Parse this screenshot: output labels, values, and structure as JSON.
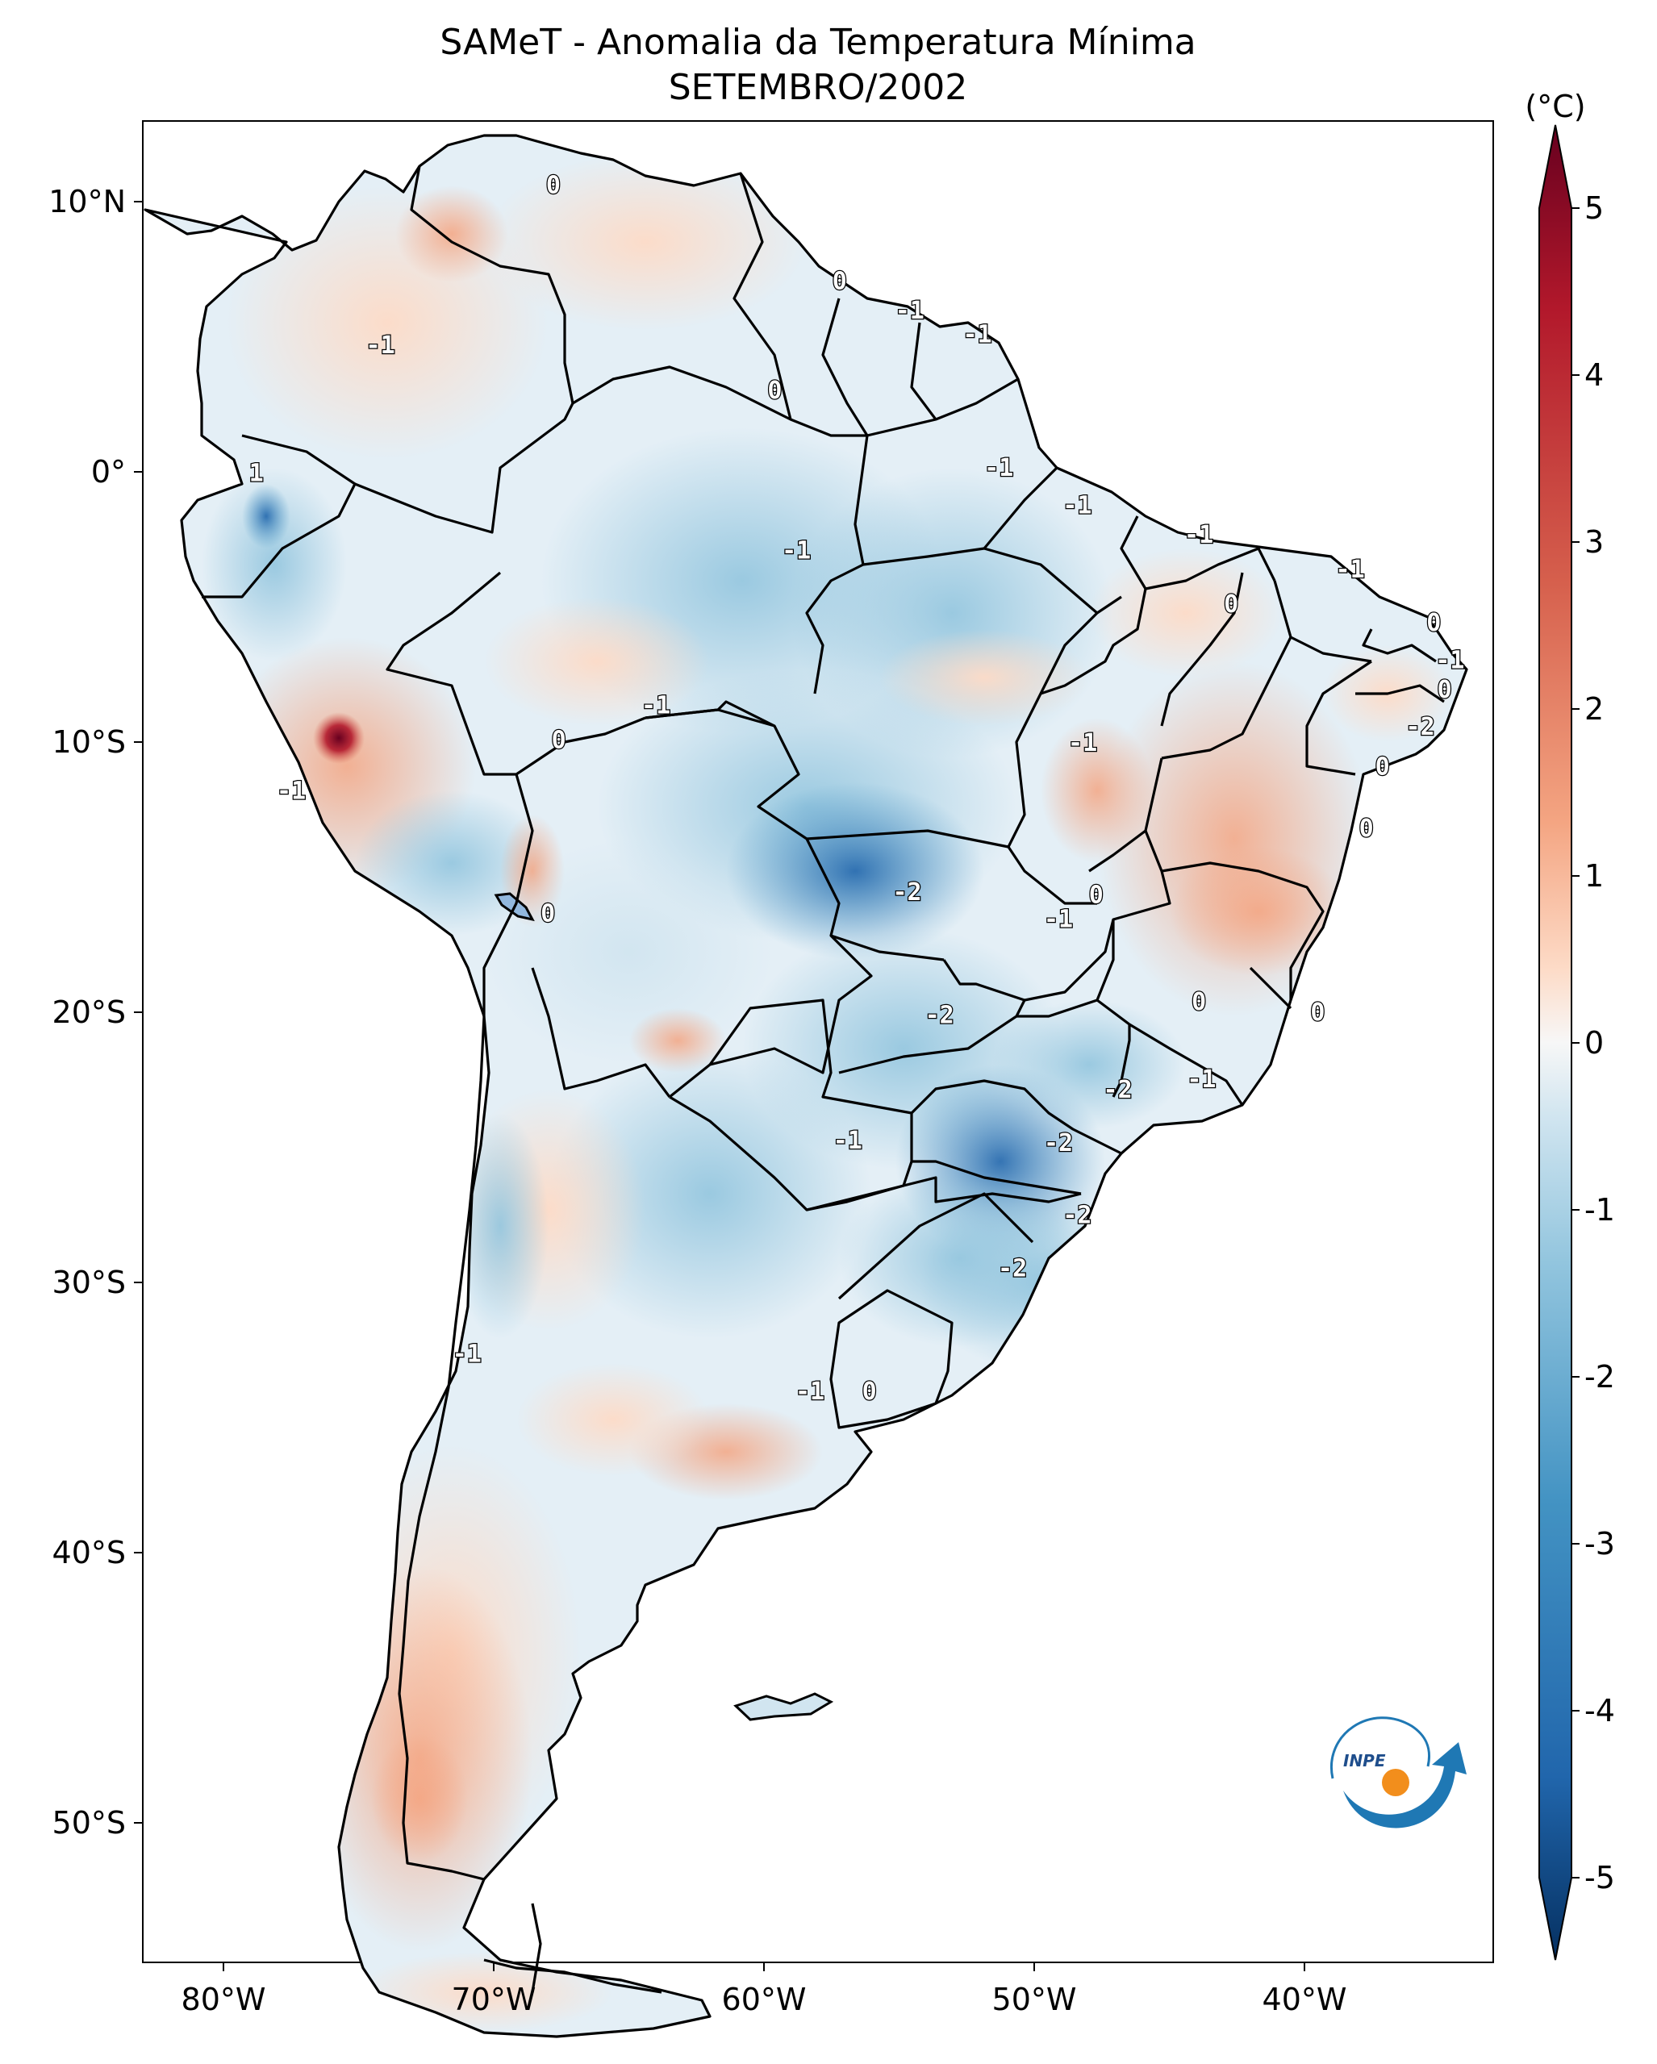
{
  "title": "SAMeT - Anomalia da Temperatura Mínima",
  "subtitle": "SETEMBRO/2002",
  "colorbar": {
    "unit_label": "(°C)",
    "ticks": [
      "5",
      "4",
      "3",
      "2",
      "1",
      "0",
      "-1",
      "-2",
      "-3",
      "-4",
      "-5"
    ],
    "range": [
      -5,
      5
    ]
  },
  "axes": {
    "lon_ticks": [
      "80°W",
      "70°W",
      "60°W",
      "50°W",
      "40°W"
    ],
    "lat_ticks": [
      "10°N",
      "0°",
      "10°S",
      "20°S",
      "30°S",
      "40°S",
      "50°S"
    ],
    "lon_range": [
      -83,
      -33
    ],
    "lat_range": [
      -56,
      13
    ]
  },
  "contour_labels": [
    {
      "text": "0",
      "lon": -67.8,
      "lat": 10.6
    },
    {
      "text": "0",
      "lon": -57.2,
      "lat": 7.0
    },
    {
      "text": "-1",
      "lon": -54.6,
      "lat": 5.9
    },
    {
      "text": "-1",
      "lon": -52.1,
      "lat": 5.0
    },
    {
      "text": "-1",
      "lon": -74.2,
      "lat": 4.6
    },
    {
      "text": "0",
      "lon": -59.6,
      "lat": 2.9
    },
    {
      "text": "-1",
      "lon": -51.3,
      "lat": 0.0
    },
    {
      "text": "1",
      "lon": -78.8,
      "lat": -0.2
    },
    {
      "text": "-1",
      "lon": -48.4,
      "lat": -1.4
    },
    {
      "text": "-1",
      "lon": -58.8,
      "lat": -3.1
    },
    {
      "text": "-1",
      "lon": -43.9,
      "lat": -2.5
    },
    {
      "text": "-1",
      "lon": -38.3,
      "lat": -3.8
    },
    {
      "text": "0",
      "lon": -42.7,
      "lat": -5.1
    },
    {
      "text": "0",
      "lon": -35.2,
      "lat": -5.8
    },
    {
      "text": "-1",
      "lon": -34.6,
      "lat": -7.2
    },
    {
      "text": "0",
      "lon": -34.8,
      "lat": -8.3
    },
    {
      "text": "-2",
      "lon": -35.7,
      "lat": -9.7
    },
    {
      "text": "-1",
      "lon": -64.0,
      "lat": -8.9
    },
    {
      "text": "0",
      "lon": -67.6,
      "lat": -10.2
    },
    {
      "text": "0",
      "lon": -37.1,
      "lat": -11.2
    },
    {
      "text": "-1",
      "lon": -48.2,
      "lat": -10.3
    },
    {
      "text": "-1",
      "lon": -77.5,
      "lat": -12.1
    },
    {
      "text": "0",
      "lon": -37.7,
      "lat": -13.5
    },
    {
      "text": "-2",
      "lon": -54.7,
      "lat": -15.9
    },
    {
      "text": "0",
      "lon": -47.7,
      "lat": -16.0
    },
    {
      "text": "-1",
      "lon": -49.1,
      "lat": -16.9
    },
    {
      "text": "0",
      "lon": -68.0,
      "lat": -16.7
    },
    {
      "text": "0",
      "lon": -43.9,
      "lat": -20.0
    },
    {
      "text": "0",
      "lon": -39.5,
      "lat": -20.4
    },
    {
      "text": "-2",
      "lon": -53.5,
      "lat": -20.5
    },
    {
      "text": "-2",
      "lon": -46.9,
      "lat": -23.3
    },
    {
      "text": "-1",
      "lon": -43.8,
      "lat": -22.9
    },
    {
      "text": "-1",
      "lon": -56.9,
      "lat": -25.2
    },
    {
      "text": "-2",
      "lon": -49.1,
      "lat": -25.3
    },
    {
      "text": "-2",
      "lon": -48.4,
      "lat": -28.0
    },
    {
      "text": "-2",
      "lon": -50.8,
      "lat": -30.0
    },
    {
      "text": "-1",
      "lon": -71.0,
      "lat": -33.2
    },
    {
      "text": "-1",
      "lon": -58.3,
      "lat": -34.6
    },
    {
      "text": "0",
      "lon": -56.1,
      "lat": -34.6
    }
  ],
  "logo": {
    "text": "INPE"
  },
  "colors": {
    "ocean": "#ffffff",
    "border": "#000000",
    "warm": "#f4a582",
    "cool": "#92c5de",
    "deep_cool": "#4393c3",
    "hot": "#b2182b",
    "logo_blue": "#1f78b4",
    "logo_orange": "#f28e1c"
  }
}
